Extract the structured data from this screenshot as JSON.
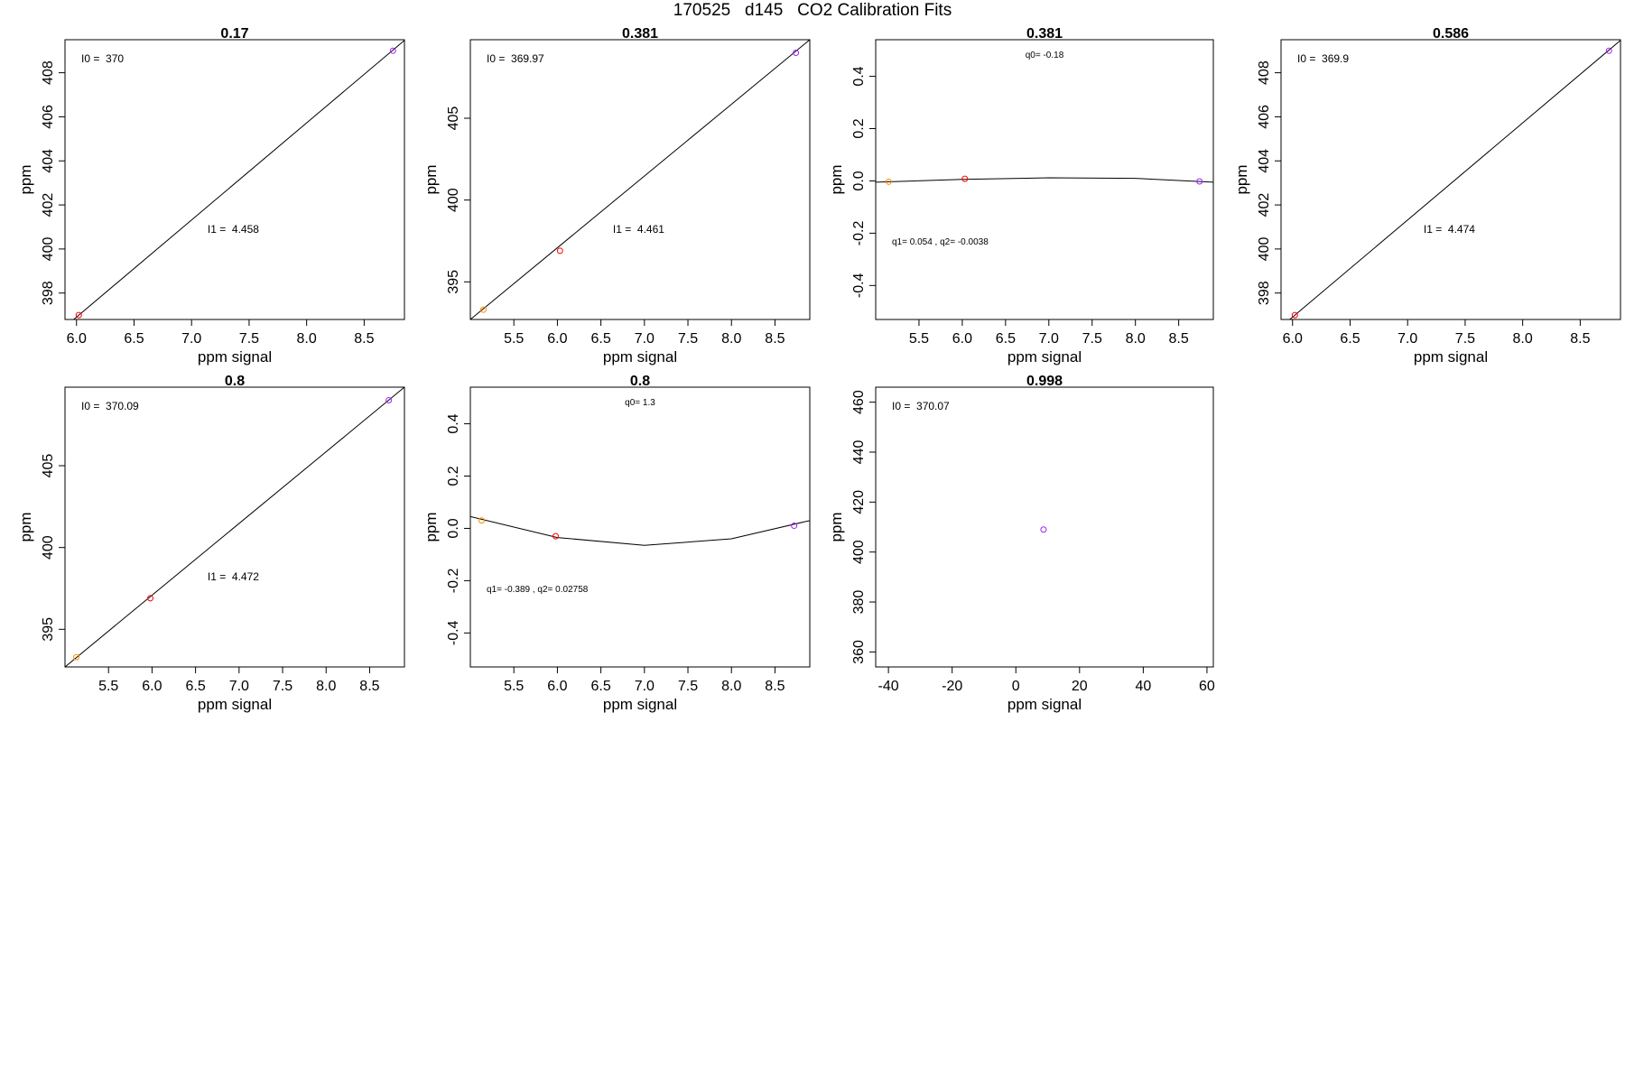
{
  "page_title": "170525   d145   CO2 Calibration Fits",
  "colors": {
    "orange": "#ff8c00",
    "red": "#ff0000",
    "purple": "#a020f0",
    "line": "#000000",
    "frame": "#000000"
  },
  "chart_data": [
    {
      "type": "scatter",
      "title": "0.17",
      "xlabel": "ppm signal",
      "ylabel": "ppm",
      "xlim": [
        5.9,
        8.85
      ],
      "ylim": [
        396.8,
        409.5
      ],
      "xticks": [
        "6.0",
        "6.5",
        "7.0",
        "7.5",
        "8.0",
        "8.5"
      ],
      "yticks": [
        "398",
        "400",
        "402",
        "404",
        "406",
        "408"
      ],
      "points": [
        {
          "x": 6.02,
          "y": 397.0,
          "color": "red"
        },
        {
          "x": 8.75,
          "y": 409.0,
          "color": "purple"
        }
      ],
      "fit_line": [
        [
          5.9,
          396.47
        ],
        [
          8.85,
          409.47
        ]
      ],
      "annotations": [
        {
          "text": "I0 =  370",
          "pos": "top-left"
        },
        {
          "text": "I1 =  4.458",
          "pos": "lower-middle"
        }
      ]
    },
    {
      "type": "scatter",
      "title": "0.381",
      "xlabel": "ppm signal",
      "ylabel": "ppm",
      "xlim": [
        5.0,
        8.9
      ],
      "ylim": [
        392.7,
        409.8
      ],
      "xticks": [
        "5.5",
        "6.0",
        "6.5",
        "7.0",
        "7.5",
        "8.0",
        "8.5"
      ],
      "yticks": [
        "395",
        "400",
        "405"
      ],
      "points": [
        {
          "x": 5.15,
          "y": 393.3,
          "color": "orange"
        },
        {
          "x": 6.03,
          "y": 396.9,
          "color": "red"
        },
        {
          "x": 8.74,
          "y": 409.0,
          "color": "purple"
        }
      ],
      "fit_line": [
        [
          5.0,
          392.7
        ],
        [
          8.9,
          409.8
        ]
      ],
      "annotations": [
        {
          "text": "I0 =  369.97",
          "pos": "top-left"
        },
        {
          "text": "I1 =  4.461",
          "pos": "lower-middle"
        }
      ]
    },
    {
      "type": "scatter",
      "title": "0.381",
      "xlabel": "ppm signal",
      "ylabel": "ppm",
      "xlim": [
        5.0,
        8.9
      ],
      "ylim": [
        -0.53,
        0.54
      ],
      "xticks": [
        "5.5",
        "6.0",
        "6.5",
        "7.0",
        "7.5",
        "8.0",
        "8.5"
      ],
      "yticks": [
        "-0.4",
        "-0.2",
        "0.0",
        "0.2",
        "0.4"
      ],
      "points": [
        {
          "x": 5.15,
          "y": -0.003,
          "color": "orange"
        },
        {
          "x": 6.03,
          "y": 0.008,
          "color": "red"
        },
        {
          "x": 8.74,
          "y": -0.002,
          "color": "purple"
        }
      ],
      "fit_line": [
        [
          5.0,
          -0.005
        ],
        [
          6.0,
          0.006
        ],
        [
          7.0,
          0.012
        ],
        [
          8.0,
          0.01
        ],
        [
          8.9,
          -0.005
        ]
      ],
      "annotations": [
        {
          "text": "q0= -0.18",
          "pos": "top-center"
        },
        {
          "text": "q1= 0.054 , q2= -0.0038",
          "pos": "bottom-left"
        }
      ]
    },
    {
      "type": "scatter",
      "title": "0.586",
      "xlabel": "ppm signal",
      "ylabel": "ppm",
      "xlim": [
        5.9,
        8.85
      ],
      "ylim": [
        396.8,
        409.5
      ],
      "xticks": [
        "6.0",
        "6.5",
        "7.0",
        "7.5",
        "8.0",
        "8.5"
      ],
      "yticks": [
        "398",
        "400",
        "402",
        "404",
        "406",
        "408"
      ],
      "points": [
        {
          "x": 6.02,
          "y": 397.0,
          "color": "red"
        },
        {
          "x": 8.75,
          "y": 409.0,
          "color": "purple"
        }
      ],
      "fit_line": [
        [
          5.9,
          396.47
        ],
        [
          8.85,
          409.47
        ]
      ],
      "annotations": [
        {
          "text": "I0 =  369.9",
          "pos": "top-left"
        },
        {
          "text": "I1 =  4.474",
          "pos": "lower-middle"
        }
      ]
    },
    {
      "type": "scatter",
      "title": "0.8",
      "xlabel": "ppm signal",
      "ylabel": "ppm",
      "xlim": [
        5.0,
        8.9
      ],
      "ylim": [
        392.7,
        409.8
      ],
      "xticks": [
        "5.5",
        "6.0",
        "6.5",
        "7.0",
        "7.5",
        "8.0",
        "8.5"
      ],
      "yticks": [
        "395",
        "400",
        "405"
      ],
      "points": [
        {
          "x": 5.13,
          "y": 393.3,
          "color": "orange"
        },
        {
          "x": 5.98,
          "y": 396.9,
          "color": "red"
        },
        {
          "x": 8.72,
          "y": 409.0,
          "color": "purple"
        }
      ],
      "fit_line": [
        [
          5.0,
          392.7
        ],
        [
          8.9,
          409.8
        ]
      ],
      "annotations": [
        {
          "text": "I0 =  370.09",
          "pos": "top-left"
        },
        {
          "text": "I1 =  4.472",
          "pos": "lower-middle"
        }
      ]
    },
    {
      "type": "scatter",
      "title": "0.8",
      "xlabel": "ppm signal",
      "ylabel": "ppm",
      "xlim": [
        5.0,
        8.9
      ],
      "ylim": [
        -0.53,
        0.54
      ],
      "xticks": [
        "5.5",
        "6.0",
        "6.5",
        "7.0",
        "7.5",
        "8.0",
        "8.5"
      ],
      "yticks": [
        "-0.4",
        "-0.2",
        "0.0",
        "0.2",
        "0.4"
      ],
      "points": [
        {
          "x": 5.13,
          "y": 0.03,
          "color": "orange"
        },
        {
          "x": 5.98,
          "y": -0.03,
          "color": "red"
        },
        {
          "x": 8.72,
          "y": 0.01,
          "color": "purple"
        }
      ],
      "fit_line": [
        [
          5.0,
          0.045
        ],
        [
          6.0,
          -0.035
        ],
        [
          7.0,
          -0.065
        ],
        [
          8.0,
          -0.04
        ],
        [
          8.9,
          0.03
        ]
      ],
      "annotations": [
        {
          "text": "q0= 1.3",
          "pos": "top-center"
        },
        {
          "text": "q1= -0.389 , q2= 0.02758",
          "pos": "bottom-left"
        }
      ]
    },
    {
      "type": "scatter",
      "title": "0.998",
      "xlabel": "ppm signal",
      "ylabel": "ppm",
      "xlim": [
        -44,
        62
      ],
      "ylim": [
        354,
        466
      ],
      "xticks": [
        "-40",
        "-20",
        "0",
        "20",
        "40",
        "60"
      ],
      "yticks": [
        "360",
        "380",
        "400",
        "420",
        "440",
        "460"
      ],
      "points": [
        {
          "x": 8.7,
          "y": 409.0,
          "color": "purple"
        }
      ],
      "fit_line": [],
      "annotations": [
        {
          "text": "I0 =  370.07",
          "pos": "top-left"
        }
      ]
    }
  ]
}
